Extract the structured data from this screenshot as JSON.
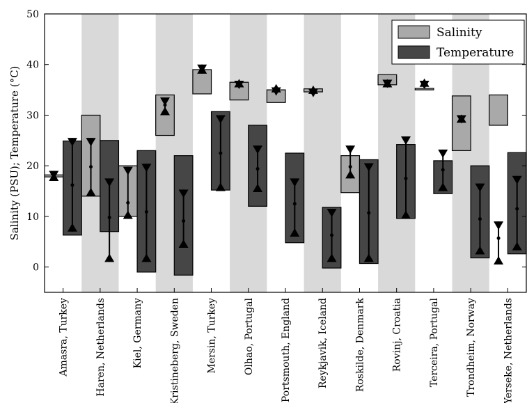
{
  "chart_data": {
    "type": "bar",
    "ylabel": "Salinity (PSU); Temperature (°C)",
    "ylim": [
      -5,
      50
    ],
    "yticks": [
      0,
      10,
      20,
      30,
      40,
      50
    ],
    "legend": {
      "placement": "top-right"
    },
    "categories": [
      "Amasra, Turkey",
      "Haren, Netherlands",
      "Kiel, Germany",
      "Kristineberg, Sweden",
      "Mersin, Turkey",
      "Olhao, Portugal",
      "Portsmouth, England",
      "Reykjavik, Iceland",
      "Roskilde, Denmark",
      "Rovinj, Croatia",
      "Terceira, Portugal",
      "Trondheim, Norway",
      "Yerseke, Netherlands"
    ],
    "series": [
      {
        "name": "Salinity",
        "color": "#a9a9a9",
        "ranges": [
          [
            17.8,
            18.2
          ],
          [
            14,
            30
          ],
          [
            10,
            20
          ],
          [
            26,
            34
          ],
          [
            34.2,
            39
          ],
          [
            33,
            36.5
          ],
          [
            32.5,
            35
          ],
          [
            34.6,
            35.2
          ],
          [
            14.7,
            22
          ],
          [
            36,
            38
          ],
          [
            35,
            35.3
          ],
          [
            23,
            33.8
          ],
          [
            28,
            34
          ]
        ],
        "whisker": [
          [
            17,
            19
          ],
          [
            14,
            25.5
          ],
          [
            9.5,
            19.8
          ],
          [
            30,
            33.5
          ],
          [
            38.2,
            40
          ],
          [
            35.5,
            36.8
          ],
          [
            34.5,
            35.5
          ],
          [
            34.2,
            35.2
          ],
          [
            17.5,
            24
          ],
          [
            35.5,
            37
          ],
          [
            35.6,
            36.8
          ],
          [
            28.5,
            30
          ],
          [
            0.5,
            9
          ]
        ],
        "mean": [
          18,
          19.8,
          12.7,
          32,
          39,
          36,
          35,
          34.8,
          19.8,
          36.2,
          36,
          29.3,
          5.7
        ]
      },
      {
        "name": "Temperature",
        "color": "#464646",
        "ranges": [
          [
            6.3,
            24.9
          ],
          [
            7,
            25
          ],
          [
            -1,
            23
          ],
          [
            -1.6,
            22
          ],
          [
            15.2,
            30.7
          ],
          [
            12,
            28
          ],
          [
            4.8,
            22.5
          ],
          [
            -0.2,
            11.8
          ],
          [
            0.7,
            21.2
          ],
          [
            9.6,
            24.2
          ],
          [
            14.5,
            21
          ],
          [
            1.8,
            20
          ],
          [
            2.6,
            22.6
          ]
        ],
        "whisker": [
          [
            7,
            25.5
          ],
          [
            1,
            17.5
          ],
          [
            1,
            20.4
          ],
          [
            3.8,
            15.3
          ],
          [
            15,
            30
          ],
          [
            14.8,
            24
          ],
          [
            6,
            17.5
          ],
          [
            1,
            11.5
          ],
          [
            1,
            20.5
          ],
          [
            9.5,
            25.8
          ],
          [
            15,
            23.2
          ],
          [
            2.5,
            16.5
          ],
          [
            3.3,
            18
          ]
        ],
        "mean": [
          16.2,
          9.8,
          10.9,
          9.1,
          22.5,
          19.4,
          12.5,
          6.3,
          10.7,
          17.5,
          19.2,
          9.5,
          11.5
        ]
      }
    ]
  }
}
